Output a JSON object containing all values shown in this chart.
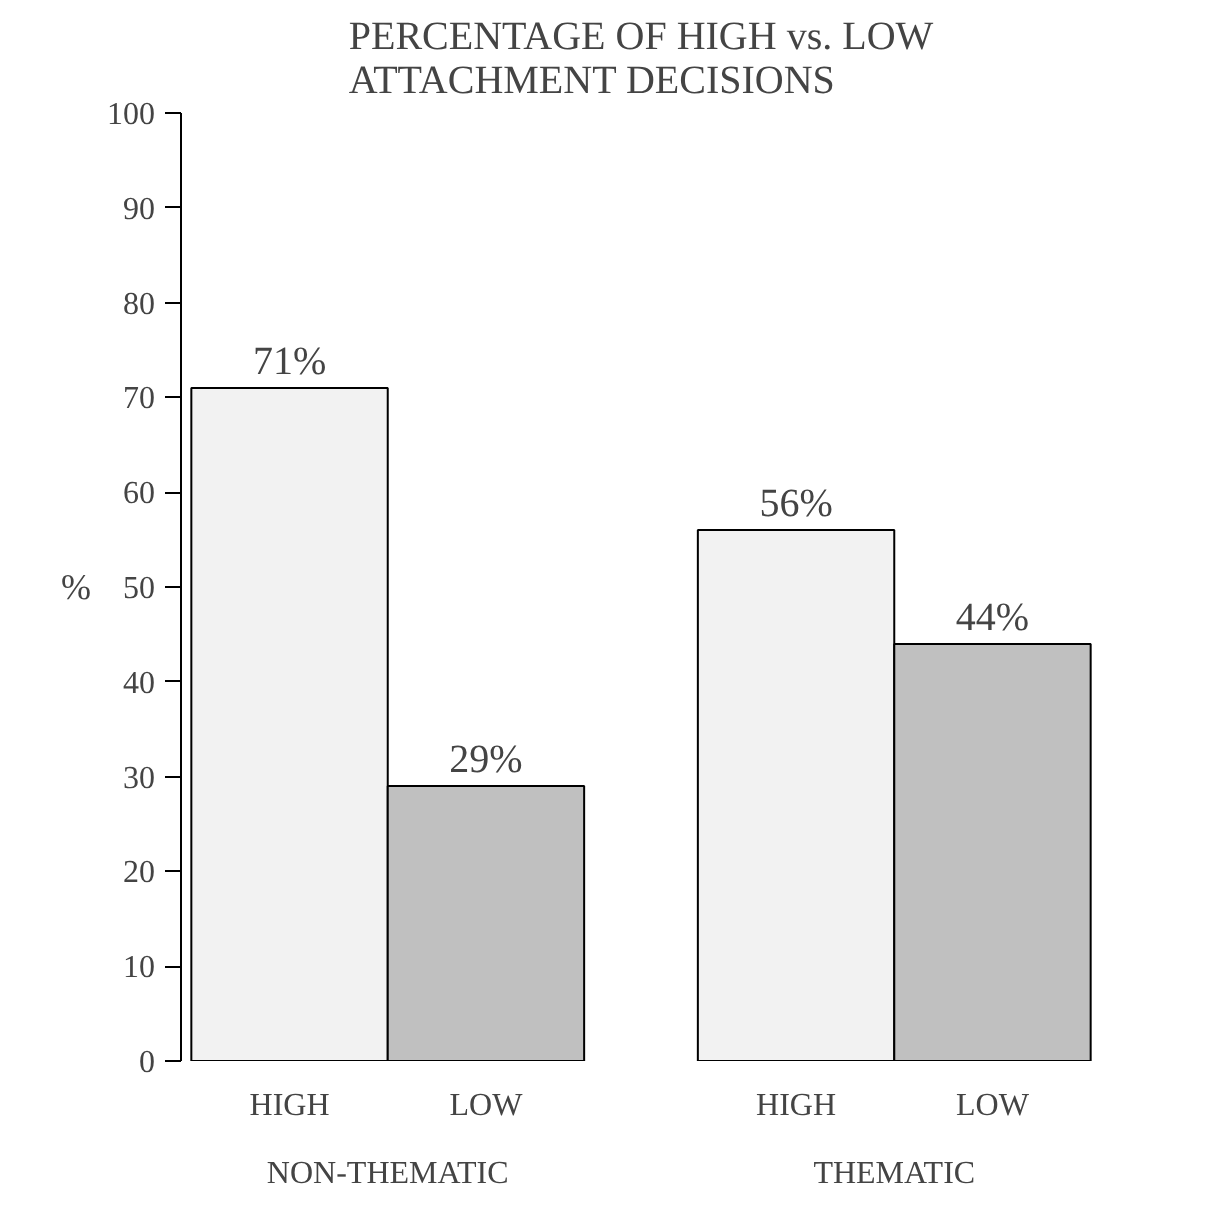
{
  "chart_data": {
    "type": "bar",
    "title": "PERCENTAGE OF HIGH vs. LOW ATTACHMENT DECISIONS",
    "ylabel": "%",
    "categories": [
      "NON-THEMATIC",
      "THEMATIC"
    ],
    "series": [
      {
        "name": "HIGH",
        "color": "#f2f2f2",
        "values": [
          71,
          56
        ],
        "value_labels": [
          "71%",
          "56%"
        ]
      },
      {
        "name": "LOW",
        "color": "#c0c0c0",
        "values": [
          29,
          44
        ],
        "value_labels": [
          "29%",
          "44%"
        ]
      }
    ],
    "ylim": [
      0,
      100
    ],
    "yticks": [
      0,
      10,
      20,
      30,
      40,
      50,
      60,
      70,
      80,
      90,
      100
    ],
    "grid": false
  }
}
